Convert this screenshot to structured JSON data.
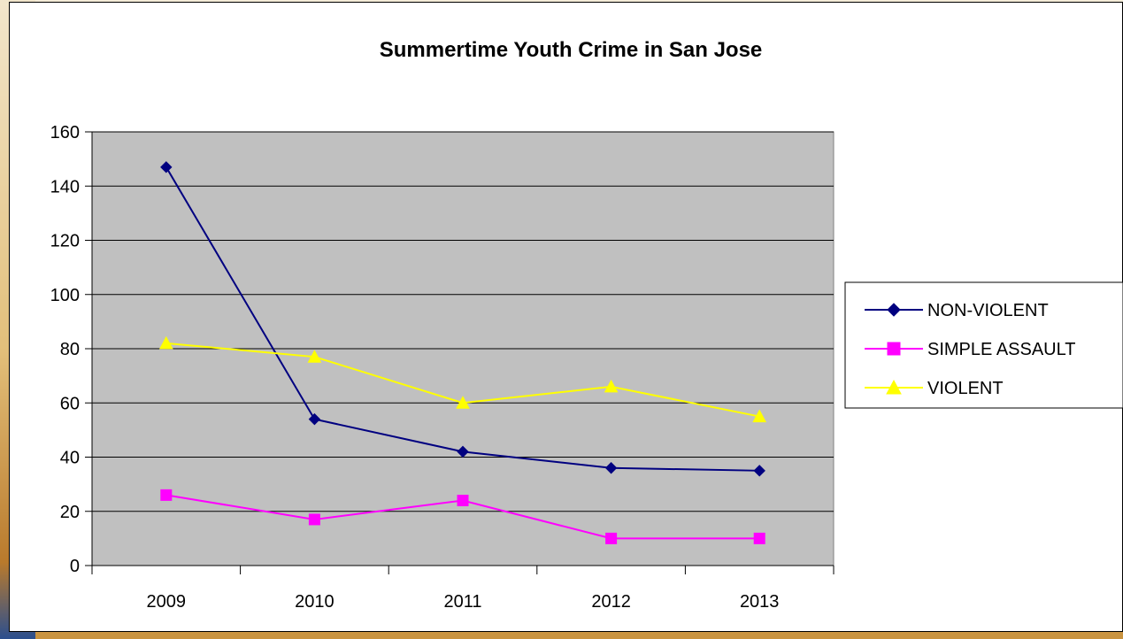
{
  "chart_data": {
    "type": "line",
    "title": "Summertime Youth Crime in San Jose",
    "xlabel": "",
    "ylabel": "",
    "categories": [
      "2009",
      "2010",
      "2011",
      "2012",
      "2013"
    ],
    "ylim": [
      0,
      160
    ],
    "yticks": [
      0,
      20,
      40,
      60,
      80,
      100,
      120,
      140,
      160
    ],
    "grid": true,
    "plot_background": "#c0c0c0",
    "legend_position": "right",
    "series": [
      {
        "name": "NON-VIOLENT",
        "values": [
          147,
          54,
          42,
          36,
          35
        ],
        "color": "#000080",
        "marker": "diamond"
      },
      {
        "name": "SIMPLE ASSAULT",
        "values": [
          26,
          17,
          24,
          10,
          10
        ],
        "color": "#ff00ff",
        "marker": "square"
      },
      {
        "name": "VIOLENT",
        "values": [
          82,
          77,
          60,
          66,
          55
        ],
        "color": "#ffff00",
        "marker": "triangle"
      }
    ]
  }
}
